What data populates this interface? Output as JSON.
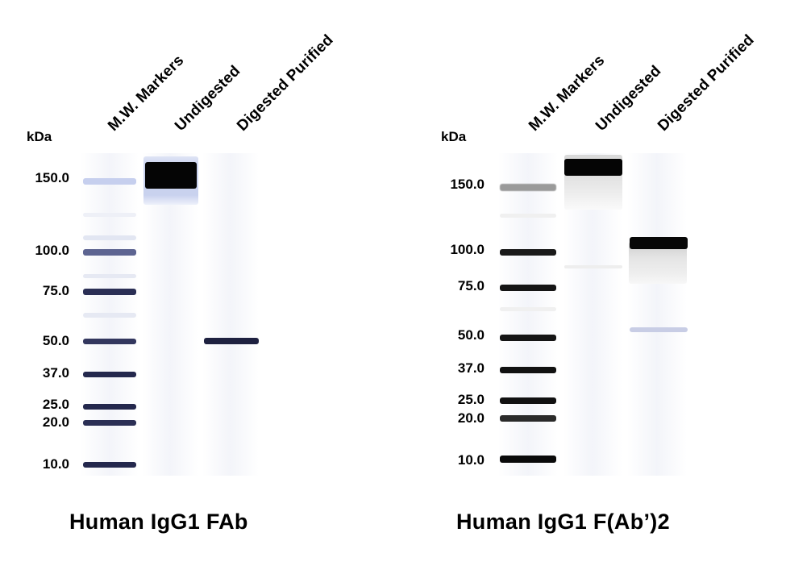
{
  "panels": [
    {
      "title": "Human IgG1 FAb",
      "unit_label": "kDa",
      "lanes": [
        "M.W. Markers",
        "Undigested",
        "Digested Purified"
      ],
      "markers": [
        "150.0",
        "100.0",
        "75.0",
        "50.0",
        "37.0",
        "25.0",
        "20.0",
        "10.0"
      ]
    },
    {
      "title": "Human IgG1 F(Ab’)2",
      "unit_label": "kDa",
      "lanes": [
        "M.W. Markers",
        "Undigested",
        "Digested Purified"
      ],
      "markers": [
        "150.0",
        "100.0",
        "75.0",
        "50.0",
        "37.0",
        "25.0",
        "20.0",
        "10.0"
      ]
    }
  ],
  "colors": {
    "band_dark": "#111111",
    "band_marker_blue": "#2a2f5a",
    "band_light_blue": "#c9d2ee",
    "background": "#ffffff"
  }
}
